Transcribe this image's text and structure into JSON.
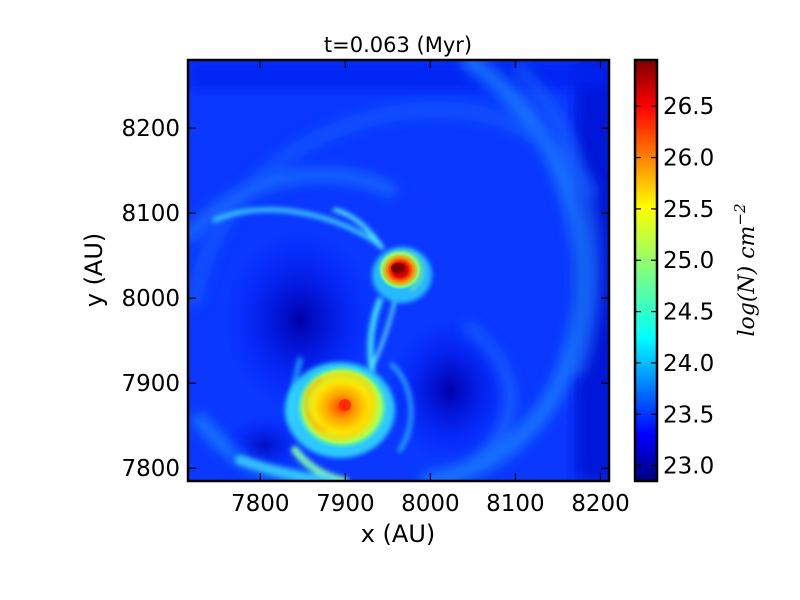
{
  "chart_data": {
    "type": "heatmap",
    "title": "t=0.063 (Myr)",
    "xlabel": "x (AU)",
    "ylabel": "y (AU)",
    "xlim": [
      7715,
      8210
    ],
    "ylim": [
      7785,
      8280
    ],
    "x_ticks": [
      7800,
      7900,
      8000,
      8100,
      8200
    ],
    "y_ticks": [
      7800,
      7900,
      8000,
      8100,
      8200
    ],
    "colorbar": {
      "label": "log(N) cm",
      "label_exponent": "−2",
      "range": [
        22.85,
        26.95
      ],
      "ticks": [
        23.0,
        23.5,
        24.0,
        24.5,
        25.0,
        25.5,
        26.0,
        26.5
      ],
      "colormap": "jet"
    },
    "features": [
      {
        "name": "upper core",
        "x": 7962,
        "y": 8030,
        "peak": 26.9
      },
      {
        "name": "lower core",
        "x": 7900,
        "y": 7870,
        "peak": 26.2
      }
    ]
  }
}
